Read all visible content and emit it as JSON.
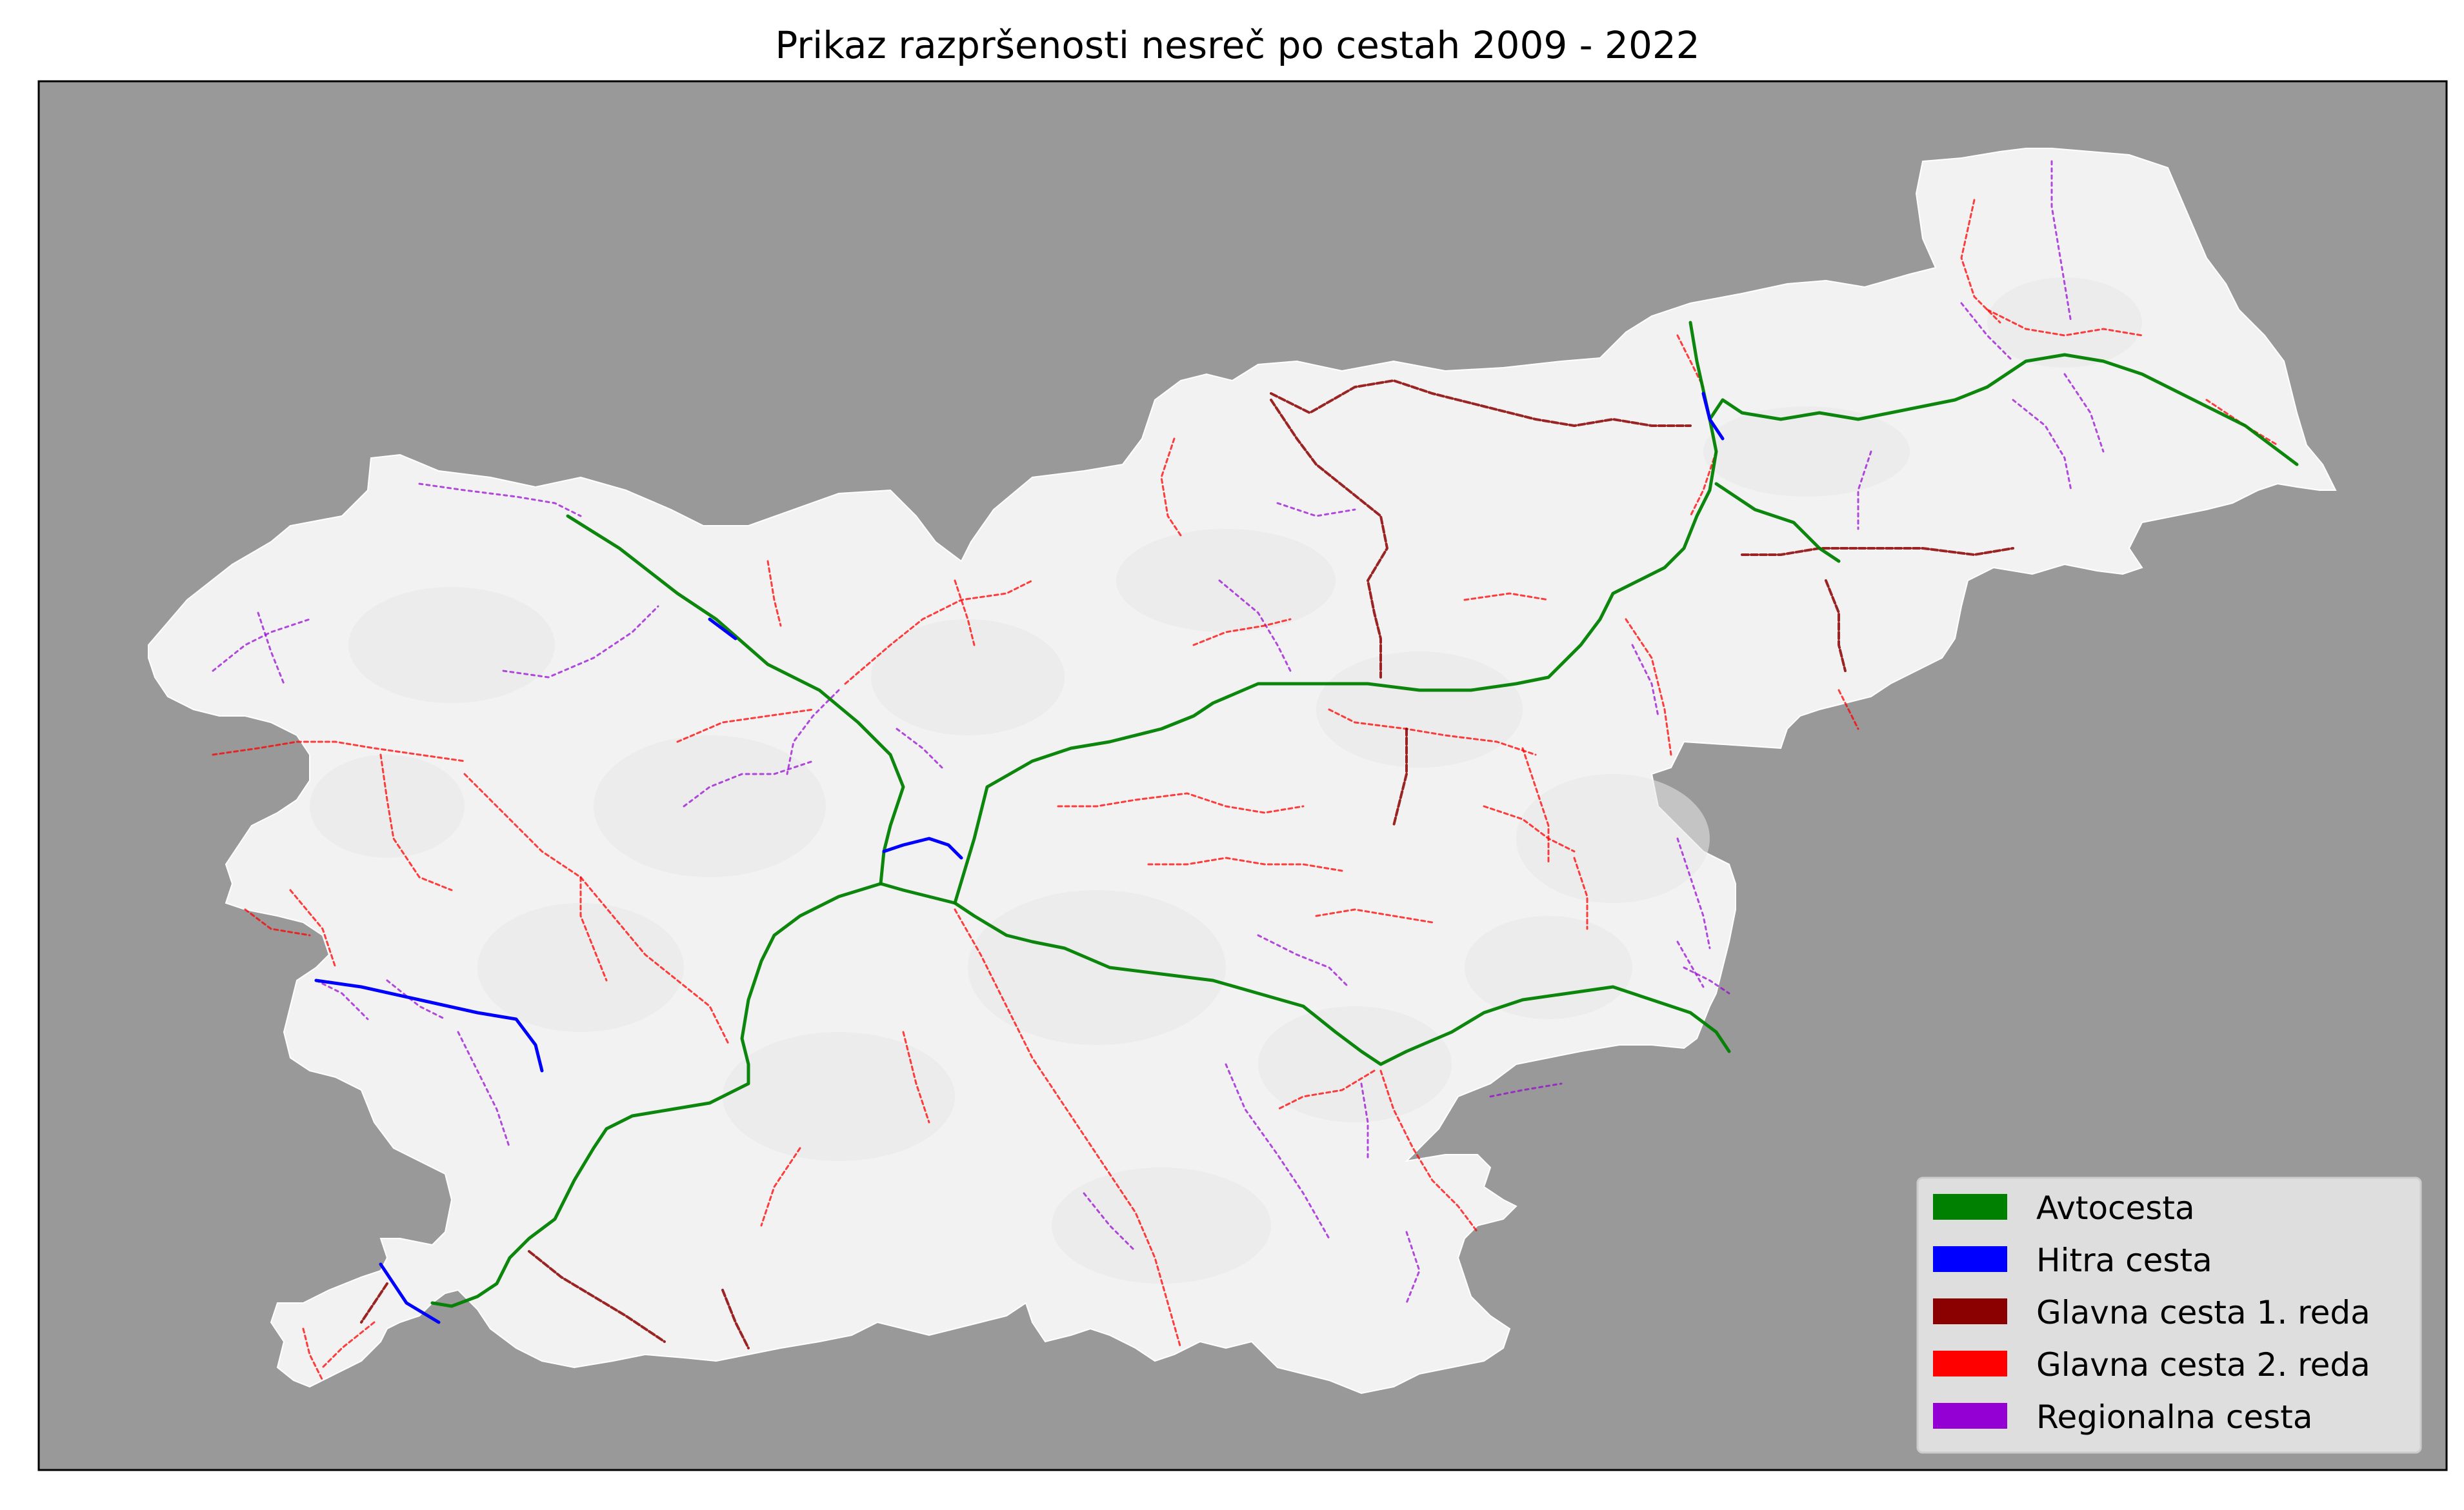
{
  "title": "Prikaz razpršenosti nesreč po cestah 2009 - 2022",
  "colors": {
    "background": "#999999",
    "land": "#f2f2f2",
    "land_shade": "#e8e8e8",
    "frame": "#000000"
  },
  "legend": {
    "placement": "bottom-right",
    "items": [
      {
        "label": "Avtocesta",
        "color": "#008000",
        "key": "avtocesta"
      },
      {
        "label": "Hitra cesta",
        "color": "#0000ff",
        "key": "hitra"
      },
      {
        "label": "Glavna cesta 1. reda",
        "color": "#8b0000",
        "key": "glavna1"
      },
      {
        "label": "Glavna cesta 2. reda",
        "color": "#ff0000",
        "key": "glavna2"
      },
      {
        "label": "Regionalna cesta",
        "color": "#9400d3",
        "key": "regionalna"
      }
    ]
  }
}
